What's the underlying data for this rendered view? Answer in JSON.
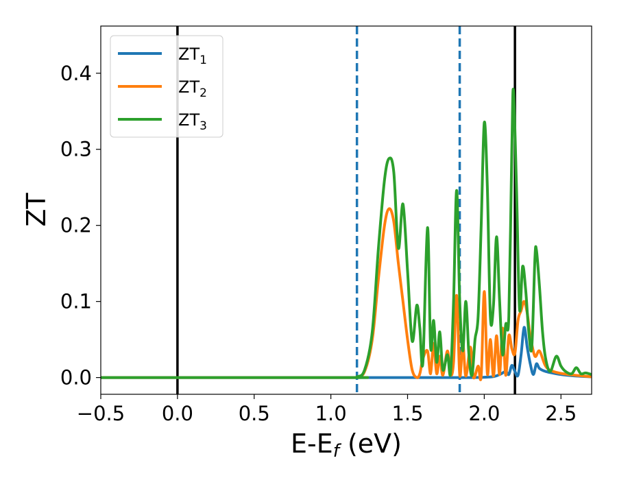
{
  "chart_data": {
    "type": "line",
    "xlabel": "E-E",
    "xlabel_sub": "f",
    "xlabel_unit": " (eV)",
    "ylabel": "ZT",
    "xlim": [
      -0.5,
      2.7
    ],
    "ylim": [
      -0.022,
      0.462
    ],
    "xticks": [
      -0.5,
      0.0,
      0.5,
      1.0,
      1.5,
      2.0,
      2.5
    ],
    "xtick_labels": [
      "−0.5",
      "0.0",
      "0.5",
      "1.0",
      "1.5",
      "2.0",
      "2.5"
    ],
    "yticks": [
      0.0,
      0.1,
      0.2,
      0.3,
      0.4
    ],
    "ytick_labels": [
      "0.0",
      "0.1",
      "0.2",
      "0.3",
      "0.4"
    ],
    "legend_position": "top-left",
    "vertical_lines": [
      {
        "x": 0.0,
        "style": "solid",
        "color": "#000000"
      },
      {
        "x": 2.2,
        "style": "solid",
        "color": "#000000"
      },
      {
        "x": 1.17,
        "style": "dashed",
        "color": "#1f77b4"
      },
      {
        "x": 1.84,
        "style": "dashed",
        "color": "#1f77b4"
      }
    ],
    "series": [
      {
        "name": "ZT",
        "subscript": "1",
        "color": "#1f77b4",
        "points": [
          [
            -0.5,
            0
          ],
          [
            1.15,
            0
          ],
          [
            1.5,
            0.0
          ],
          [
            1.9,
            0.0
          ],
          [
            2.05,
            0.001
          ],
          [
            2.1,
            0.004
          ],
          [
            2.14,
            0.008
          ],
          [
            2.16,
            0.004
          ],
          [
            2.18,
            0.016
          ],
          [
            2.2,
            0.008
          ],
          [
            2.22,
            0.003
          ],
          [
            2.24,
            0.03
          ],
          [
            2.26,
            0.066
          ],
          [
            2.28,
            0.04
          ],
          [
            2.3,
            0.018
          ],
          [
            2.32,
            0.004
          ],
          [
            2.34,
            0.018
          ],
          [
            2.36,
            0.012
          ],
          [
            2.4,
            0.008
          ],
          [
            2.5,
            0.004
          ],
          [
            2.6,
            0.002
          ],
          [
            2.7,
            0.001
          ]
        ]
      },
      {
        "name": "ZT",
        "subscript": "2",
        "color": "#ff7f0e",
        "points": [
          [
            -0.5,
            0
          ],
          [
            1.1,
            0
          ],
          [
            1.17,
            0.001
          ],
          [
            1.22,
            0.008
          ],
          [
            1.27,
            0.05
          ],
          [
            1.31,
            0.13
          ],
          [
            1.35,
            0.2
          ],
          [
            1.38,
            0.222
          ],
          [
            1.41,
            0.205
          ],
          [
            1.44,
            0.15
          ],
          [
            1.47,
            0.1
          ],
          [
            1.5,
            0.05
          ],
          [
            1.53,
            0.01
          ],
          [
            1.56,
            0.0
          ],
          [
            1.58,
            0.005
          ],
          [
            1.6,
            0.025
          ],
          [
            1.63,
            0.035
          ],
          [
            1.65,
            0.005
          ],
          [
            1.67,
            0.045
          ],
          [
            1.69,
            0.005
          ],
          [
            1.71,
            0.028
          ],
          [
            1.73,
            0.003
          ],
          [
            1.76,
            0.035
          ],
          [
            1.78,
            0.004
          ],
          [
            1.8,
            0.02
          ],
          [
            1.82,
            0.108
          ],
          [
            1.84,
            0.003
          ],
          [
            1.86,
            0.045
          ],
          [
            1.88,
            0.002
          ],
          [
            1.91,
            0.04
          ],
          [
            1.93,
            0.0
          ],
          [
            1.96,
            0.015
          ],
          [
            1.98,
            0.002
          ],
          [
            2.0,
            0.113
          ],
          [
            2.02,
            0.005
          ],
          [
            2.04,
            0.05
          ],
          [
            2.06,
            0.002
          ],
          [
            2.08,
            0.055
          ],
          [
            2.1,
            0.004
          ],
          [
            2.12,
            0.065
          ],
          [
            2.14,
            0.003
          ],
          [
            2.16,
            0.055
          ],
          [
            2.18,
            0.038
          ],
          [
            2.2,
            0.032
          ],
          [
            2.22,
            0.075
          ],
          [
            2.24,
            0.088
          ],
          [
            2.26,
            0.1
          ],
          [
            2.28,
            0.085
          ],
          [
            2.3,
            0.055
          ],
          [
            2.33,
            0.028
          ],
          [
            2.36,
            0.035
          ],
          [
            2.4,
            0.015
          ],
          [
            2.45,
            0.008
          ],
          [
            2.55,
            0.004
          ],
          [
            2.7,
            0.001
          ]
        ]
      },
      {
        "name": "ZT",
        "subscript": "3",
        "color": "#2ca02c",
        "points": [
          [
            -0.5,
            0
          ],
          [
            1.1,
            0
          ],
          [
            1.17,
            0.001
          ],
          [
            1.22,
            0.01
          ],
          [
            1.27,
            0.06
          ],
          [
            1.31,
            0.17
          ],
          [
            1.35,
            0.26
          ],
          [
            1.38,
            0.288
          ],
          [
            1.41,
            0.27
          ],
          [
            1.44,
            0.17
          ],
          [
            1.47,
            0.228
          ],
          [
            1.5,
            0.14
          ],
          [
            1.53,
            0.048
          ],
          [
            1.56,
            0.095
          ],
          [
            1.58,
            0.065
          ],
          [
            1.6,
            0.02
          ],
          [
            1.63,
            0.197
          ],
          [
            1.65,
            0.04
          ],
          [
            1.67,
            0.075
          ],
          [
            1.69,
            0.02
          ],
          [
            1.71,
            0.06
          ],
          [
            1.73,
            0.01
          ],
          [
            1.76,
            0.03
          ],
          [
            1.78,
            0.005
          ],
          [
            1.8,
            0.1
          ],
          [
            1.82,
            0.246
          ],
          [
            1.84,
            0.1
          ],
          [
            1.86,
            0.035
          ],
          [
            1.88,
            0.1
          ],
          [
            1.9,
            0.03
          ],
          [
            1.92,
            0.003
          ],
          [
            1.94,
            0.05
          ],
          [
            1.96,
            0.08
          ],
          [
            1.98,
            0.2
          ],
          [
            2.0,
            0.335
          ],
          [
            2.02,
            0.25
          ],
          [
            2.04,
            0.08
          ],
          [
            2.06,
            0.095
          ],
          [
            2.08,
            0.185
          ],
          [
            2.1,
            0.1
          ],
          [
            2.12,
            0.03
          ],
          [
            2.14,
            0.07
          ],
          [
            2.16,
            0.08
          ],
          [
            2.18,
            0.3
          ],
          [
            2.19,
            0.378
          ],
          [
            2.21,
            0.25
          ],
          [
            2.23,
            0.09
          ],
          [
            2.25,
            0.146
          ],
          [
            2.27,
            0.115
          ],
          [
            2.29,
            0.06
          ],
          [
            2.31,
            0.04
          ],
          [
            2.33,
            0.155
          ],
          [
            2.34,
            0.168
          ],
          [
            2.36,
            0.12
          ],
          [
            2.38,
            0.06
          ],
          [
            2.4,
            0.025
          ],
          [
            2.43,
            0.008
          ],
          [
            2.47,
            0.028
          ],
          [
            2.5,
            0.015
          ],
          [
            2.53,
            0.008
          ],
          [
            2.57,
            0.005
          ],
          [
            2.6,
            0.013
          ],
          [
            2.63,
            0.005
          ],
          [
            2.66,
            0.006
          ],
          [
            2.7,
            0.004
          ]
        ]
      }
    ]
  }
}
